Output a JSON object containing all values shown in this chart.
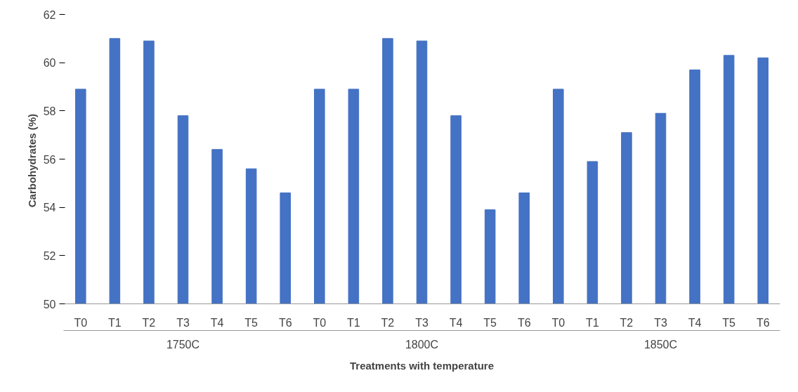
{
  "chart_data": {
    "type": "bar",
    "xlabel": "Treatments with temperature",
    "ylabel": "Carbohydrates  (%)",
    "categories": [
      "T0",
      "T1",
      "T2",
      "T3",
      "T4",
      "T5",
      "T6",
      "T0",
      "T1",
      "T2",
      "T3",
      "T4",
      "T5",
      "T6",
      "T0",
      "T1",
      "T2",
      "T3",
      "T4",
      "T5",
      "T6"
    ],
    "annotations": [
      "1750C",
      "1800C",
      "1850C"
    ],
    "values": [
      58.9,
      61.0,
      60.9,
      57.8,
      56.4,
      55.6,
      54.6,
      58.9,
      58.9,
      61.0,
      60.9,
      57.8,
      53.9,
      54.6,
      58.9,
      55.9,
      57.1,
      57.9,
      59.7,
      60.3,
      60.2
    ],
    "color": "#4472c4",
    "ylim": [
      50,
      62
    ],
    "yticks": [
      50,
      52,
      54,
      56,
      58,
      60,
      62
    ],
    "grid": false
  }
}
